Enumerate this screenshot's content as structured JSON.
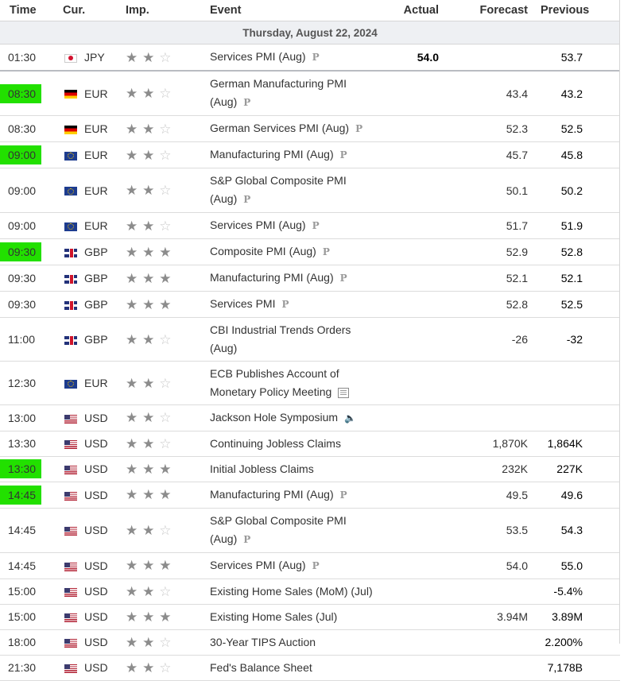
{
  "headers": {
    "time": "Time",
    "cur": "Cur.",
    "imp": "Imp.",
    "event": "Event",
    "actual": "Actual",
    "forecast": "Forecast",
    "previous": "Previous"
  },
  "date": "Thursday, August 22, 2024",
  "rows": [
    {
      "time": "01:30",
      "hl": false,
      "flag": "jpy",
      "cur": "JPY",
      "imp": 2,
      "ev1": "Services PMI (Aug)",
      "ev2": "",
      "badge": "P",
      "actual": "54.0",
      "forecast": "",
      "previous": "53.7"
    },
    {
      "time": "08:30",
      "hl": true,
      "flag": "de",
      "cur": "EUR",
      "imp": 2,
      "ev1": "German Manufacturing PMI",
      "ev2": "(Aug)",
      "badge": "P",
      "actual": "",
      "forecast": "43.4",
      "previous": "43.2"
    },
    {
      "time": "08:30",
      "hl": false,
      "flag": "de",
      "cur": "EUR",
      "imp": 2,
      "ev1": "German Services PMI (Aug)",
      "ev2": "",
      "badge": "P",
      "actual": "",
      "forecast": "52.3",
      "previous": "52.5"
    },
    {
      "time": "09:00",
      "hl": true,
      "flag": "eu",
      "cur": "EUR",
      "imp": 2,
      "ev1": "Manufacturing PMI (Aug)",
      "ev2": "",
      "badge": "P",
      "actual": "",
      "forecast": "45.7",
      "previous": "45.8"
    },
    {
      "time": "09:00",
      "hl": false,
      "flag": "eu",
      "cur": "EUR",
      "imp": 2,
      "ev1": "S&P Global Composite PMI",
      "ev2": "(Aug)",
      "badge": "P",
      "actual": "",
      "forecast": "50.1",
      "previous": "50.2"
    },
    {
      "time": "09:00",
      "hl": false,
      "flag": "eu",
      "cur": "EUR",
      "imp": 2,
      "ev1": "Services PMI (Aug)",
      "ev2": "",
      "badge": "P",
      "actual": "",
      "forecast": "51.7",
      "previous": "51.9"
    },
    {
      "time": "09:30",
      "hl": true,
      "flag": "gb",
      "cur": "GBP",
      "imp": 3,
      "ev1": "Composite PMI (Aug)",
      "ev2": "",
      "badge": "P",
      "actual": "",
      "forecast": "52.9",
      "previous": "52.8"
    },
    {
      "time": "09:30",
      "hl": false,
      "flag": "gb",
      "cur": "GBP",
      "imp": 3,
      "ev1": "Manufacturing PMI (Aug)",
      "ev2": "",
      "badge": "P",
      "actual": "",
      "forecast": "52.1",
      "previous": "52.1"
    },
    {
      "time": "09:30",
      "hl": false,
      "flag": "gb",
      "cur": "GBP",
      "imp": 3,
      "ev1": "Services PMI",
      "ev2": "",
      "badge": "P",
      "actual": "",
      "forecast": "52.8",
      "previous": "52.5"
    },
    {
      "time": "11:00",
      "hl": false,
      "flag": "gb",
      "cur": "GBP",
      "imp": 2,
      "ev1": "CBI Industrial Trends Orders",
      "ev2": "(Aug)",
      "badge": "",
      "actual": "",
      "forecast": "-26",
      "previous": "-32"
    },
    {
      "time": "12:30",
      "hl": false,
      "flag": "eu",
      "cur": "EUR",
      "imp": 2,
      "ev1": "ECB Publishes Account of",
      "ev2": "Monetary Policy Meeting",
      "badge": "doc",
      "actual": "",
      "forecast": "",
      "previous": ""
    },
    {
      "time": "13:00",
      "hl": false,
      "flag": "us",
      "cur": "USD",
      "imp": 2,
      "ev1": "Jackson Hole Symposium",
      "ev2": "",
      "badge": "speaker",
      "actual": "",
      "forecast": "",
      "previous": ""
    },
    {
      "time": "13:30",
      "hl": false,
      "flag": "us",
      "cur": "USD",
      "imp": 2,
      "ev1": "Continuing Jobless Claims",
      "ev2": "",
      "badge": "",
      "actual": "",
      "forecast": "1,870K",
      "previous": "1,864K"
    },
    {
      "time": "13:30",
      "hl": true,
      "flag": "us",
      "cur": "USD",
      "imp": 3,
      "ev1": "Initial Jobless Claims",
      "ev2": "",
      "badge": "",
      "actual": "",
      "forecast": "232K",
      "previous": "227K"
    },
    {
      "time": "14:45",
      "hl": true,
      "flag": "us",
      "cur": "USD",
      "imp": 3,
      "ev1": "Manufacturing PMI (Aug)",
      "ev2": "",
      "badge": "P",
      "actual": "",
      "forecast": "49.5",
      "previous": "49.6"
    },
    {
      "time": "14:45",
      "hl": false,
      "flag": "us",
      "cur": "USD",
      "imp": 2,
      "ev1": "S&P Global Composite PMI",
      "ev2": "(Aug)",
      "badge": "P",
      "actual": "",
      "forecast": "53.5",
      "previous": "54.3"
    },
    {
      "time": "14:45",
      "hl": false,
      "flag": "us",
      "cur": "USD",
      "imp": 3,
      "ev1": "Services PMI (Aug)",
      "ev2": "",
      "badge": "P",
      "actual": "",
      "forecast": "54.0",
      "previous": "55.0"
    },
    {
      "time": "15:00",
      "hl": false,
      "flag": "us",
      "cur": "USD",
      "imp": 2,
      "ev1": "Existing Home Sales (MoM) (Jul)",
      "ev2": "",
      "badge": "",
      "actual": "",
      "forecast": "",
      "previous": "-5.4%"
    },
    {
      "time": "15:00",
      "hl": false,
      "flag": "us",
      "cur": "USD",
      "imp": 3,
      "ev1": "Existing Home Sales (Jul)",
      "ev2": "",
      "badge": "",
      "actual": "",
      "forecast": "3.94M",
      "previous": "3.89M"
    },
    {
      "time": "18:00",
      "hl": false,
      "flag": "us",
      "cur": "USD",
      "imp": 2,
      "ev1": "30-Year TIPS Auction",
      "ev2": "",
      "badge": "",
      "actual": "",
      "forecast": "",
      "previous": "2.200%"
    },
    {
      "time": "21:30",
      "hl": false,
      "flag": "us",
      "cur": "USD",
      "imp": 2,
      "ev1": "Fed's Balance Sheet",
      "ev2": "",
      "badge": "",
      "actual": "",
      "forecast": "",
      "previous": "7,178B"
    }
  ],
  "colors": {
    "highlight": "#22e000",
    "date_row_bg": "#eef0f3",
    "star_on": "#8c8c8c",
    "star_off": "#c9c9c9"
  }
}
